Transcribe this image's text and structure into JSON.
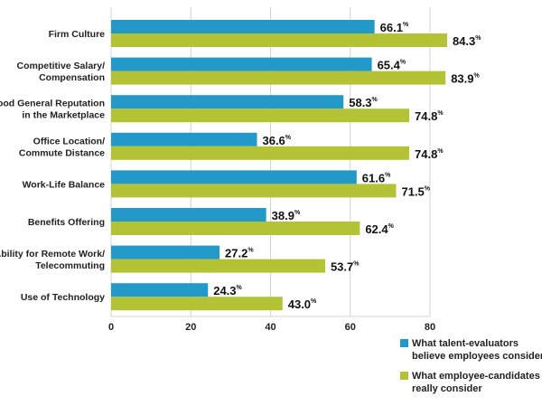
{
  "chart_data": {
    "type": "bar",
    "orientation": "horizontal",
    "categories": [
      [
        "Firm Culture"
      ],
      [
        "Competitive Salary/",
        "Compensation"
      ],
      [
        "Good General Reputation",
        "in the Marketplace"
      ],
      [
        "Office Location/",
        "Commute Distance"
      ],
      [
        "Work-Life Balance"
      ],
      [
        "Benefits Offering"
      ],
      [
        "Ability for Remote Work/",
        "Telecommuting"
      ],
      [
        "Use of Technology"
      ]
    ],
    "series": [
      {
        "name": [
          "What talent-evaluators",
          "believe employees consider"
        ],
        "color": "#2399c9",
        "values": [
          66.1,
          65.4,
          58.3,
          36.6,
          61.6,
          38.9,
          27.2,
          24.3
        ]
      },
      {
        "name": [
          "What employee-candidates",
          "really consider"
        ],
        "color": "#b4c236",
        "values": [
          84.3,
          83.9,
          74.8,
          74.8,
          71.5,
          62.4,
          53.7,
          43.0
        ]
      }
    ],
    "value_suffix": "%",
    "xlim": [
      0,
      80
    ],
    "xticks": [
      0,
      20,
      40,
      60,
      80
    ],
    "grid": true,
    "legend": "bottom-right"
  }
}
